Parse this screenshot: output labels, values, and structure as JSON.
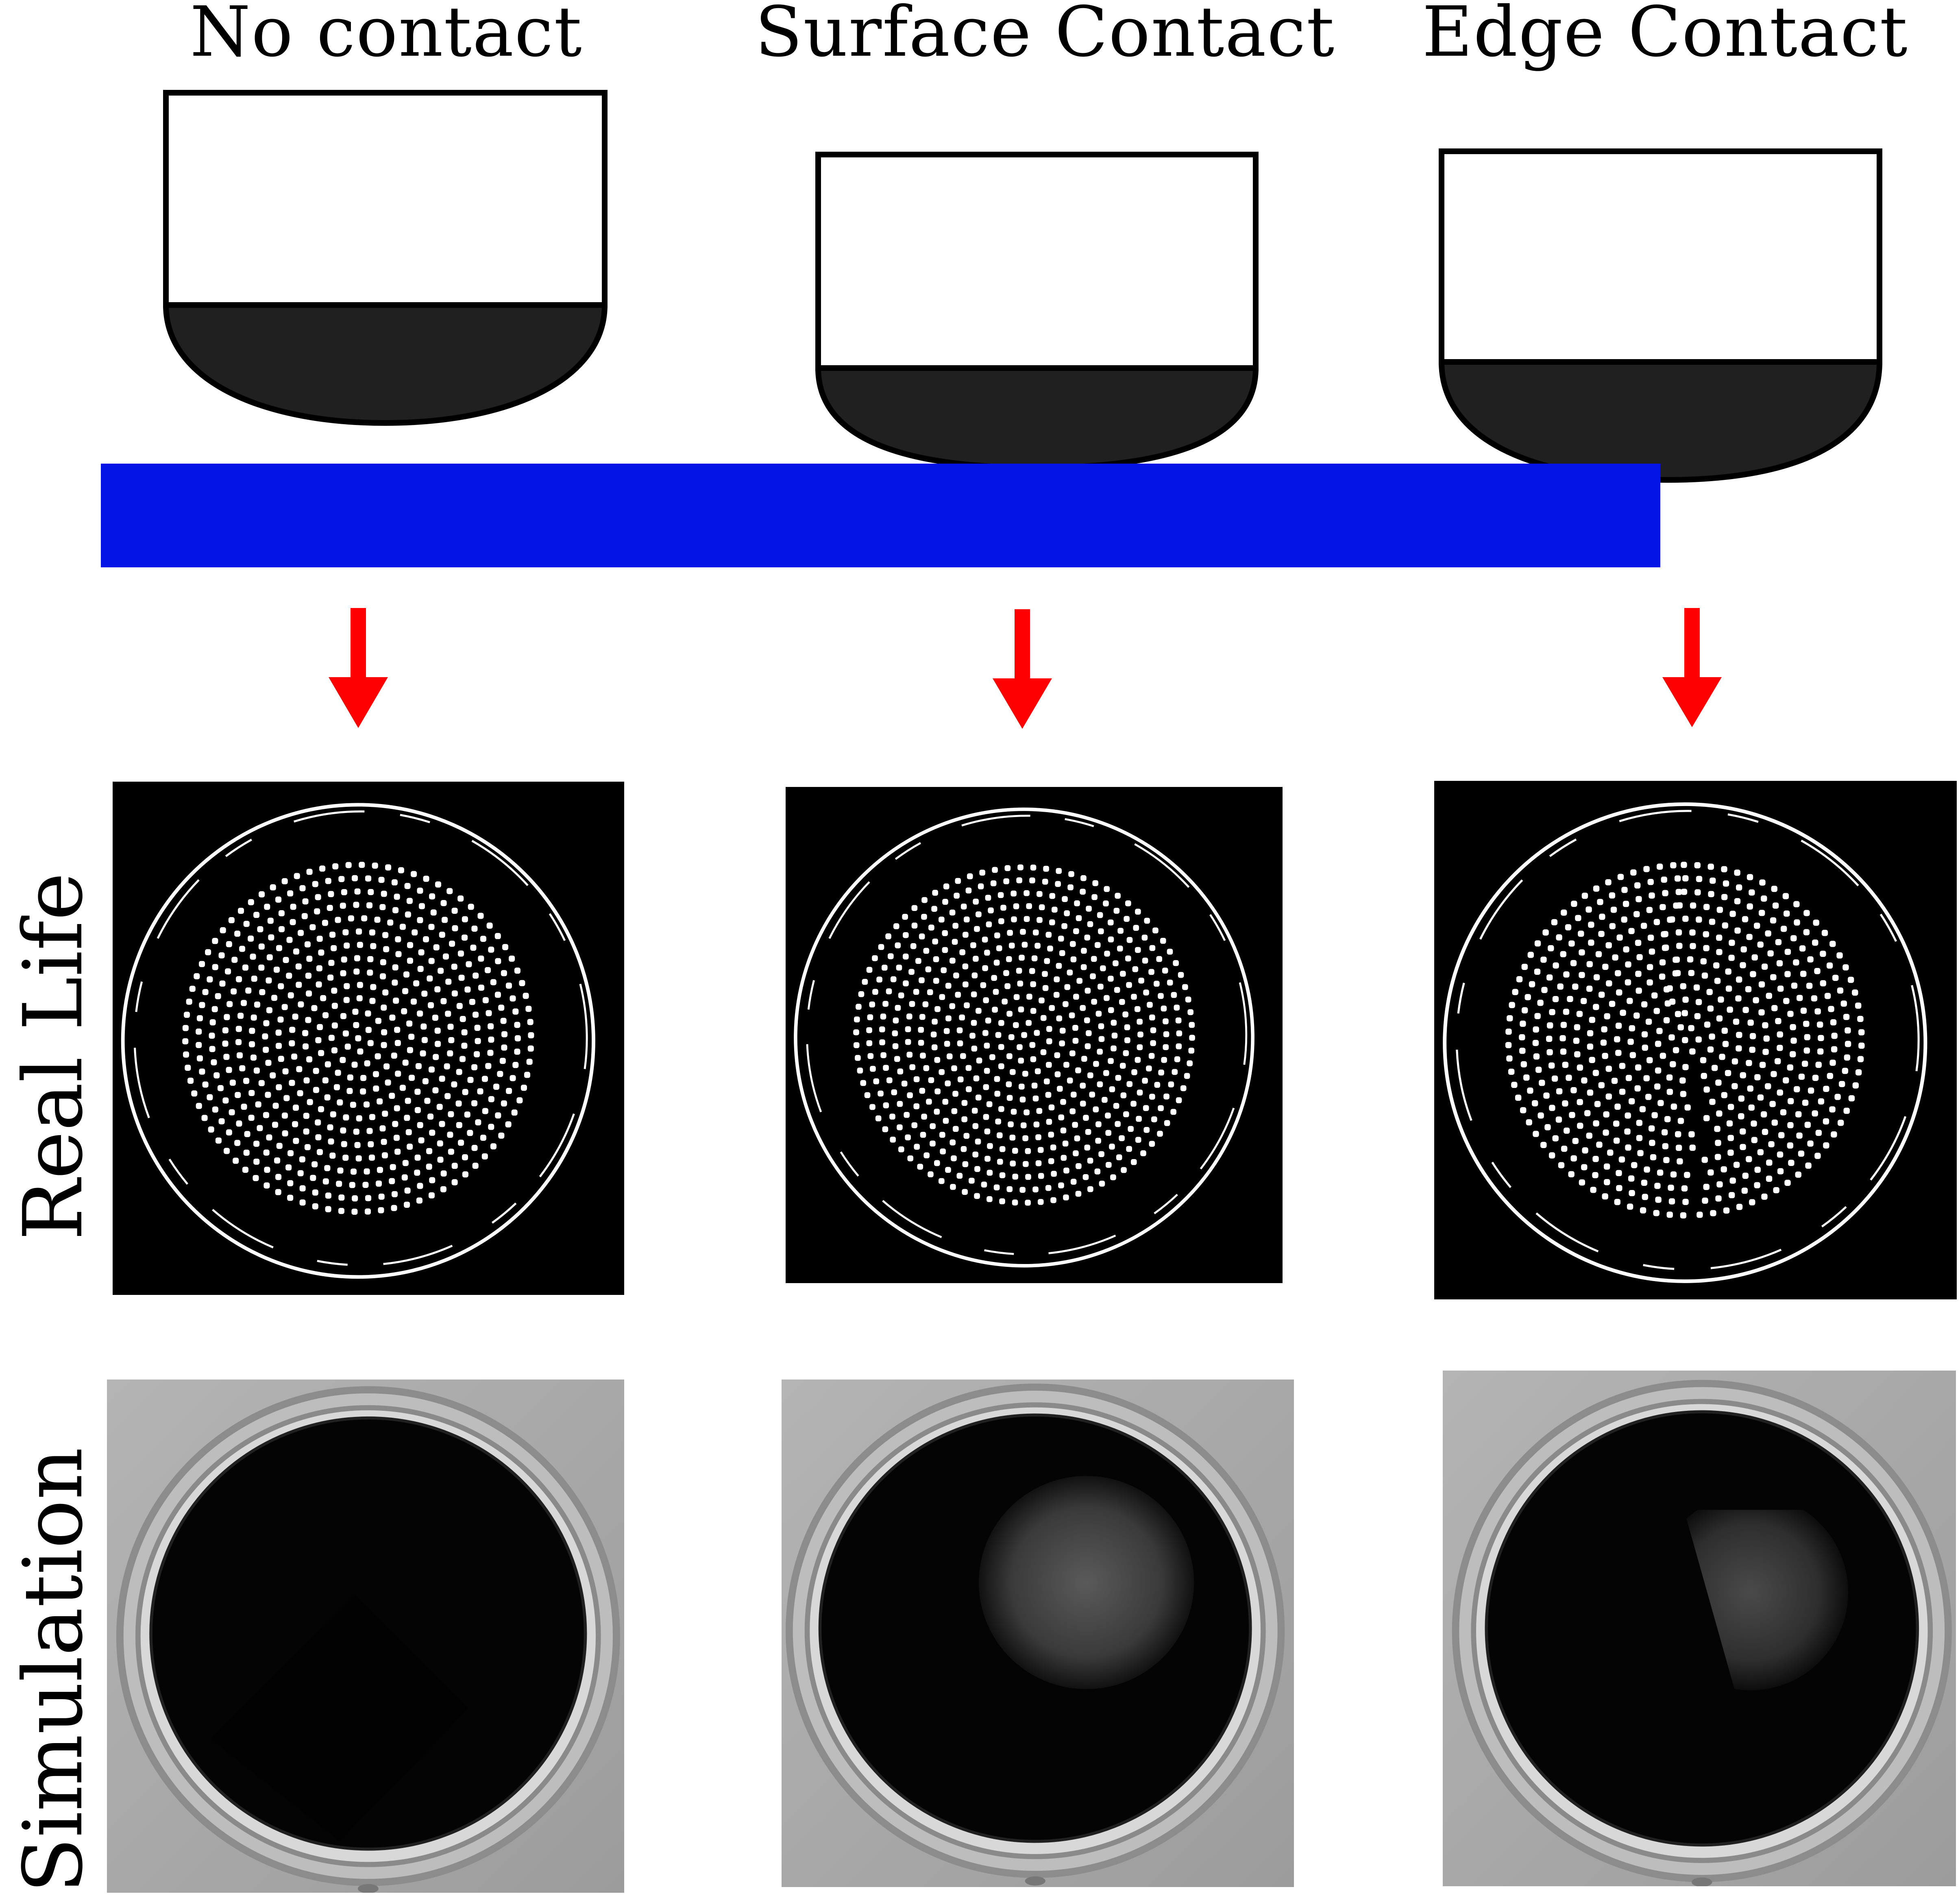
{
  "columns": [
    {
      "title": "No contact"
    },
    {
      "title": "Surface Contact"
    },
    {
      "title": "Edge Contact"
    }
  ],
  "rows": [
    {
      "label": "Real Life"
    },
    {
      "label": "Simulation"
    }
  ],
  "colors": {
    "surface": "#0414e6",
    "arrow": "#ff0000",
    "gel": "#202020",
    "sensor_body": "#ffffff",
    "outline": "#000000",
    "sim_background": "#a8a8a8"
  }
}
